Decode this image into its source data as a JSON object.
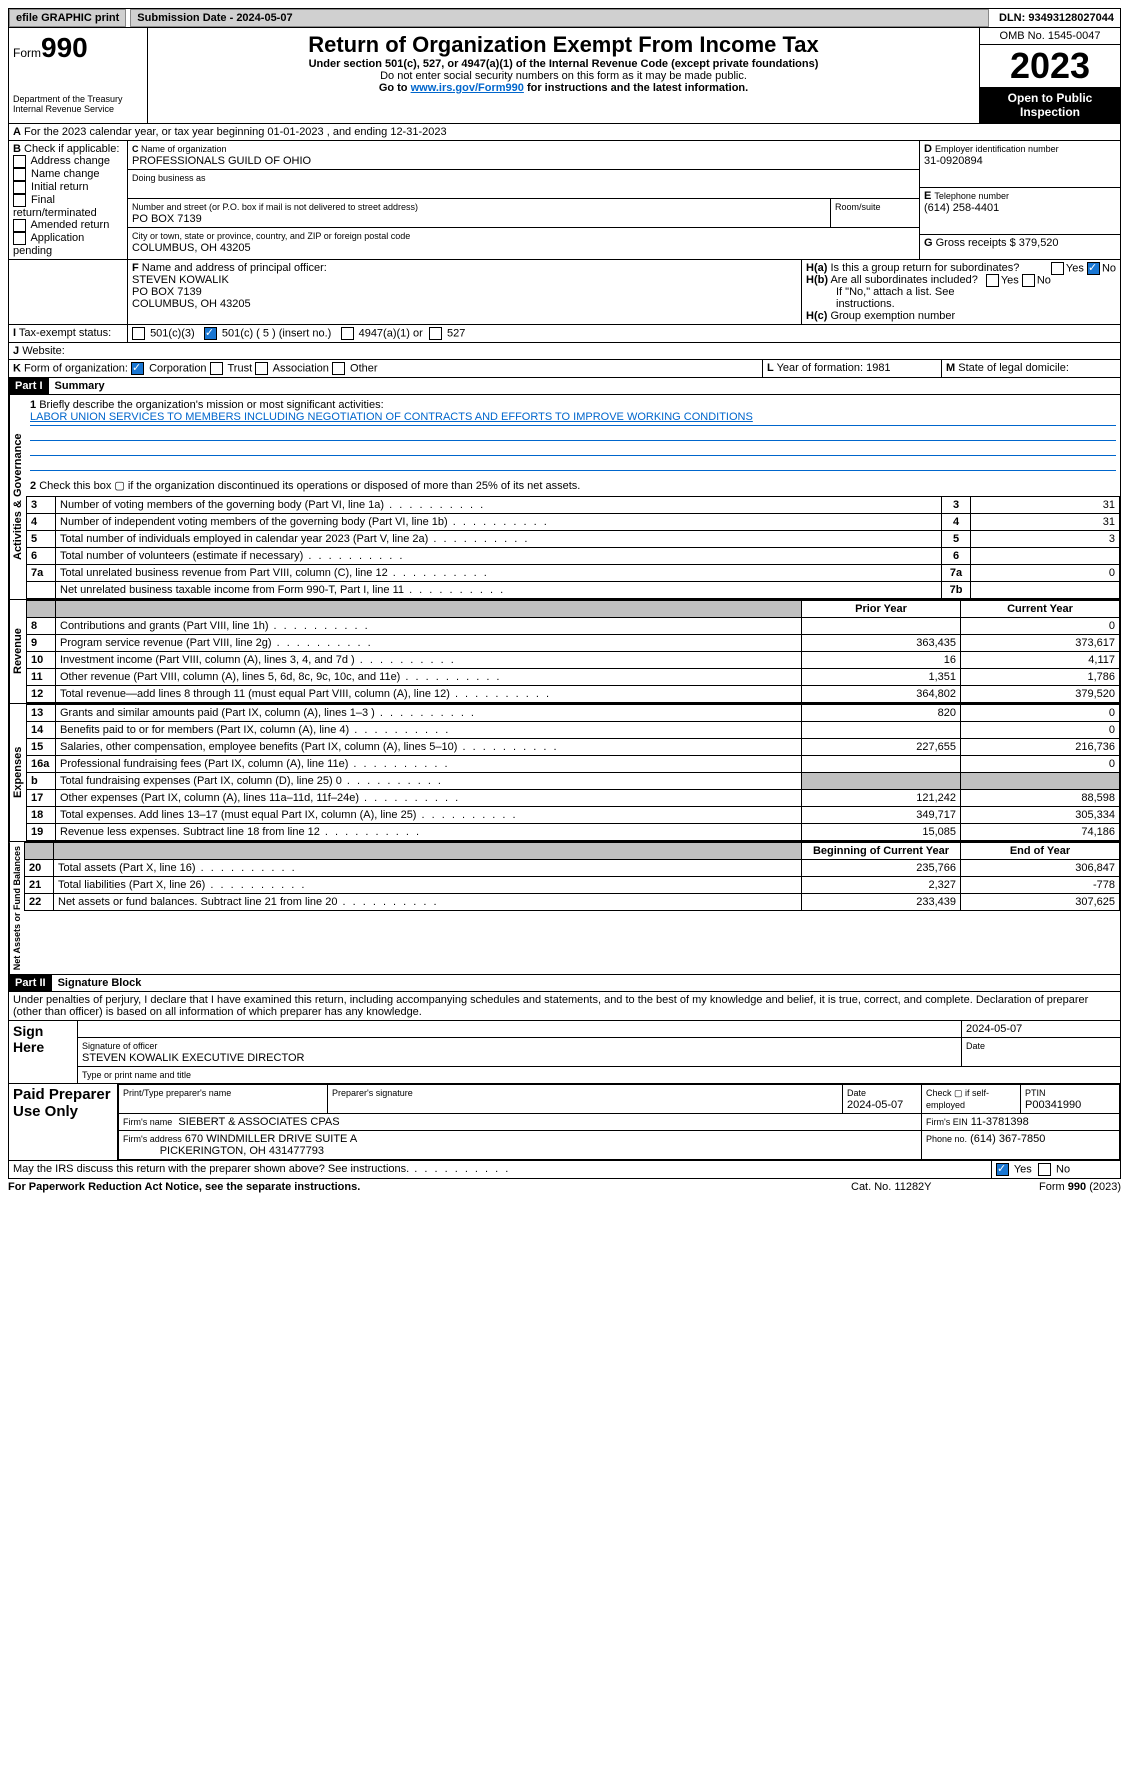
{
  "topbar": {
    "efile": "efile GRAPHIC print",
    "subdate_label": "Submission Date - 2024-05-07",
    "dln": "DLN: 93493128027044"
  },
  "header": {
    "form_prefix": "Form",
    "form_num": "990",
    "dept": "Department of the Treasury",
    "irs": "Internal Revenue Service",
    "title": "Return of Organization Exempt From Income Tax",
    "sub1": "Under section 501(c), 527, or 4947(a)(1) of the Internal Revenue Code (except private foundations)",
    "sub2": "Do not enter social security numbers on this form as it may be made public.",
    "sub3_a": "Go to ",
    "sub3_link": "www.irs.gov/Form990",
    "sub3_b": " for instructions and the latest information.",
    "omb": "OMB No. 1545-0047",
    "year": "2023",
    "inspect": "Open to Public Inspection"
  },
  "A": {
    "line": "For the 2023 calendar year, or tax year beginning 01-01-2023   , and ending 12-31-2023"
  },
  "B": {
    "label": "Check if applicable:",
    "opts": [
      "Address change",
      "Name change",
      "Initial return",
      "Final return/terminated",
      "Amended return",
      "Application pending"
    ]
  },
  "C": {
    "name_label": "Name of organization",
    "name": "PROFESSIONALS GUILD OF OHIO",
    "dba": "Doing business as",
    "addr_label": "Number and street (or P.O. box if mail is not delivered to street address)",
    "room": "Room/suite",
    "addr": "PO BOX 7139",
    "city_label": "City or town, state or province, country, and ZIP or foreign postal code",
    "city": "COLUMBUS, OH  43205"
  },
  "D": {
    "label": "Employer identification number",
    "val": "31-0920894"
  },
  "E": {
    "label": "Telephone number",
    "val": "(614) 258-4401"
  },
  "G": {
    "label": "Gross receipts $",
    "val": "379,520"
  },
  "F": {
    "label": "Name and address of principal officer:",
    "name": "STEVEN KOWALIK",
    "addr1": "PO BOX 7139",
    "addr2": "COLUMBUS, OH  43205"
  },
  "H": {
    "a": "Is this a group return for subordinates?",
    "b": "Are all subordinates included?",
    "b2": "If \"No,\" attach a list. See instructions.",
    "c": "Group exemption number",
    "yes": "Yes",
    "no": "No"
  },
  "I": {
    "label": "Tax-exempt status:",
    "o1": "501(c)(3)",
    "o2": "501(c) ( 5 ) (insert no.)",
    "o3": "4947(a)(1) or",
    "o4": "527"
  },
  "J": {
    "label": "Website:"
  },
  "K": {
    "label": "Form of organization:",
    "o1": "Corporation",
    "o2": "Trust",
    "o3": "Association",
    "o4": "Other"
  },
  "L": {
    "label": "Year of formation:",
    "val": "1981"
  },
  "M": {
    "label": "State of legal domicile:"
  },
  "part1": {
    "hdr": "Part I",
    "title": "Summary",
    "vtext_a": "Activities & Governance",
    "vtext_r": "Revenue",
    "vtext_e": "Expenses",
    "vtext_n": "Net Assets or Fund Balances",
    "l1": "Briefly describe the organization's mission or most significant activities:",
    "l1v": "LABOR UNION SERVICES TO MEMBERS INCLUDING NEGOTIATION OF CONTRACTS AND EFFORTS TO IMPROVE WORKING CONDITIONS",
    "l2": "Check this box ▢ if the organization discontinued its operations or disposed of more than 25% of its net assets.",
    "rows_a": [
      {
        "n": "3",
        "t": "Number of voting members of the governing body (Part VI, line 1a)",
        "box": "3",
        "v": "31"
      },
      {
        "n": "4",
        "t": "Number of independent voting members of the governing body (Part VI, line 1b)",
        "box": "4",
        "v": "31"
      },
      {
        "n": "5",
        "t": "Total number of individuals employed in calendar year 2023 (Part V, line 2a)",
        "box": "5",
        "v": "3"
      },
      {
        "n": "6",
        "t": "Total number of volunteers (estimate if necessary)",
        "box": "6",
        "v": ""
      },
      {
        "n": "7a",
        "t": "Total unrelated business revenue from Part VIII, column (C), line 12",
        "box": "7a",
        "v": "0"
      },
      {
        "n": "",
        "t": "Net unrelated business taxable income from Form 990-T, Part I, line 11",
        "box": "7b",
        "v": ""
      }
    ],
    "hdr_prior": "Prior Year",
    "hdr_curr": "Current Year",
    "rows_r": [
      {
        "n": "8",
        "t": "Contributions and grants (Part VIII, line 1h)",
        "p": "",
        "c": "0"
      },
      {
        "n": "9",
        "t": "Program service revenue (Part VIII, line 2g)",
        "p": "363,435",
        "c": "373,617"
      },
      {
        "n": "10",
        "t": "Investment income (Part VIII, column (A), lines 3, 4, and 7d )",
        "p": "16",
        "c": "4,117"
      },
      {
        "n": "11",
        "t": "Other revenue (Part VIII, column (A), lines 5, 6d, 8c, 9c, 10c, and 11e)",
        "p": "1,351",
        "c": "1,786"
      },
      {
        "n": "12",
        "t": "Total revenue—add lines 8 through 11 (must equal Part VIII, column (A), line 12)",
        "p": "364,802",
        "c": "379,520"
      }
    ],
    "rows_e": [
      {
        "n": "13",
        "t": "Grants and similar amounts paid (Part IX, column (A), lines 1–3 )",
        "p": "820",
        "c": "0"
      },
      {
        "n": "14",
        "t": "Benefits paid to or for members (Part IX, column (A), line 4)",
        "p": "",
        "c": "0"
      },
      {
        "n": "15",
        "t": "Salaries, other compensation, employee benefits (Part IX, column (A), lines 5–10)",
        "p": "227,655",
        "c": "216,736"
      },
      {
        "n": "16a",
        "t": "Professional fundraising fees (Part IX, column (A), line 11e)",
        "p": "",
        "c": "0"
      },
      {
        "n": "b",
        "t": "Total fundraising expenses (Part IX, column (D), line 25) 0",
        "p": "__shade__",
        "c": "__shade__"
      },
      {
        "n": "17",
        "t": "Other expenses (Part IX, column (A), lines 11a–11d, 11f–24e)",
        "p": "121,242",
        "c": "88,598"
      },
      {
        "n": "18",
        "t": "Total expenses. Add lines 13–17 (must equal Part IX, column (A), line 25)",
        "p": "349,717",
        "c": "305,334"
      },
      {
        "n": "19",
        "t": "Revenue less expenses. Subtract line 18 from line 12",
        "p": "15,085",
        "c": "74,186"
      }
    ],
    "hdr_beg": "Beginning of Current Year",
    "hdr_end": "End of Year",
    "rows_n": [
      {
        "n": "20",
        "t": "Total assets (Part X, line 16)",
        "p": "235,766",
        "c": "306,847"
      },
      {
        "n": "21",
        "t": "Total liabilities (Part X, line 26)",
        "p": "2,327",
        "c": "-778"
      },
      {
        "n": "22",
        "t": "Net assets or fund balances. Subtract line 21 from line 20",
        "p": "233,439",
        "c": "307,625"
      }
    ]
  },
  "part2": {
    "hdr": "Part II",
    "title": "Signature Block",
    "decl": "Under penalties of perjury, I declare that I have examined this return, including accompanying schedules and statements, and to the best of my knowledge and belief, it is true, correct, and complete. Declaration of preparer (other than officer) is based on all information of which preparer has any knowledge.",
    "sign": "Sign Here",
    "sig_label": "Signature of officer",
    "sig_name": "STEVEN KOWALIK  EXECUTIVE DIRECTOR",
    "type_label": "Type or print name and title",
    "date": "2024-05-07",
    "date_label": "Date",
    "paid": "Paid Preparer Use Only",
    "prep_name_label": "Print/Type preparer's name",
    "prep_sig_label": "Preparer's signature",
    "prep_date": "2024-05-07",
    "self_emp": "Check ▢ if self-employed",
    "ptin_label": "PTIN",
    "ptin": "P00341990",
    "firm_name_label": "Firm's name",
    "firm_name": "SIEBERT & ASSOCIATES CPAS",
    "firm_ein_label": "Firm's EIN",
    "firm_ein": "11-3781398",
    "firm_addr_label": "Firm's address",
    "firm_addr1": "670 WINDMILLER DRIVE SUITE A",
    "firm_addr2": "PICKERINGTON, OH  431477793",
    "phone_label": "Phone no.",
    "phone": "(614) 367-7850",
    "discuss": "May the IRS discuss this return with the preparer shown above? See instructions."
  },
  "footer": {
    "paperwork": "For Paperwork Reduction Act Notice, see the separate instructions.",
    "cat": "Cat. No. 11282Y",
    "form": "Form 990 (2023)"
  }
}
